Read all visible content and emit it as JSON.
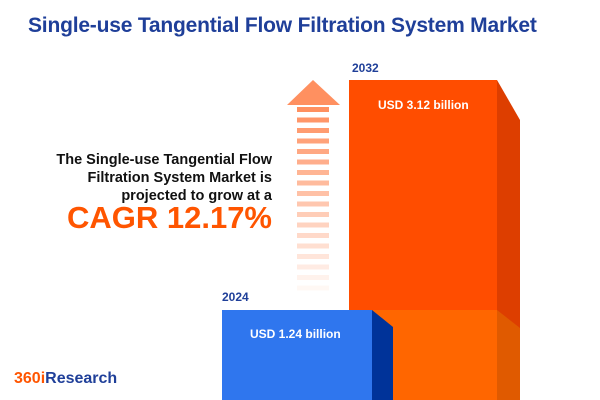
{
  "title": "Single-use Tangential Flow Filtration System Market",
  "description_lines": [
    "The Single-use Tangential Flow",
    "Filtration System Market is",
    "projected to grow at a"
  ],
  "cagr": "CAGR 12.17%",
  "logo": {
    "part1": "360i",
    "part2": "Research"
  },
  "colors": {
    "bar_2024": "#2F76EE",
    "bar_2032": "#FF4D00",
    "title": "#1F3F99",
    "accent": "#FF5500"
  },
  "chart_data": {
    "type": "bar",
    "categories": [
      "2024",
      "2032"
    ],
    "values": [
      1.24,
      3.12
    ],
    "labels": [
      "USD 1.24 billion",
      "USD 3.12 billion"
    ],
    "unit": "USD billion"
  }
}
